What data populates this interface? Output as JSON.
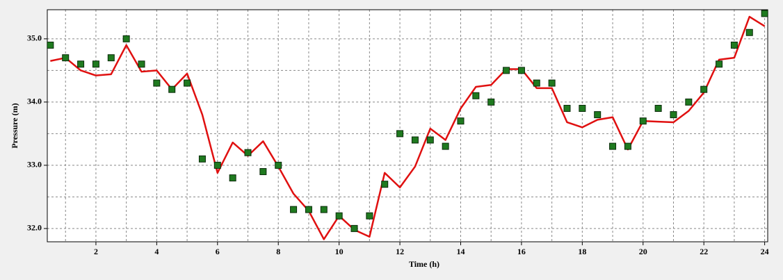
{
  "chart_data": {
    "type": "line",
    "xlabel": "Time (h)",
    "ylabel": "Pressure (m)",
    "x": [
      0.5,
      1,
      1.5,
      2,
      2.5,
      3,
      3.5,
      4,
      4.5,
      5,
      5.5,
      6,
      6.5,
      7,
      7.5,
      8,
      8.5,
      9,
      9.5,
      10,
      10.5,
      11,
      11.5,
      12,
      12.5,
      13,
      13.5,
      14,
      14.5,
      15,
      15.5,
      16,
      16.5,
      17,
      17.5,
      18,
      18.5,
      19,
      19.5,
      20,
      20.5,
      21,
      21.5,
      22,
      22.5,
      23,
      23.5,
      24
    ],
    "series": [
      {
        "type": "line",
        "color": "#e01010",
        "values": [
          34.65,
          34.7,
          34.5,
          34.42,
          34.44,
          34.9,
          34.48,
          34.5,
          34.2,
          34.45,
          33.8,
          32.88,
          33.36,
          33.15,
          33.38,
          32.98,
          32.55,
          32.28,
          31.83,
          32.2,
          31.98,
          31.87,
          32.88,
          32.65,
          32.98,
          33.58,
          33.4,
          33.9,
          34.24,
          34.27,
          34.52,
          34.52,
          34.22,
          34.22,
          33.68,
          33.6,
          33.72,
          33.76,
          33.25,
          33.7,
          33.69,
          33.68,
          33.86,
          34.15,
          34.67,
          34.7,
          35.35,
          35.2
        ]
      },
      {
        "type": "scatter",
        "color": "#1f7a1f",
        "values": [
          34.9,
          34.7,
          34.6,
          34.6,
          34.7,
          35.0,
          34.6,
          34.3,
          34.2,
          34.3,
          33.1,
          33.0,
          32.8,
          33.2,
          32.9,
          33.0,
          32.3,
          32.3,
          32.3,
          32.2,
          32.0,
          32.2,
          32.7,
          33.5,
          33.4,
          33.4,
          33.3,
          33.7,
          34.1,
          34.0,
          34.5,
          34.5,
          34.3,
          34.3,
          33.9,
          33.9,
          33.8,
          33.3,
          33.3,
          33.7,
          33.9,
          33.8,
          34.0,
          34.2,
          34.6,
          34.9,
          35.1,
          35.4
        ]
      }
    ],
    "xlim": [
      0.4,
      24.1
    ],
    "ylim": [
      31.79,
      35.46
    ],
    "xticks": [
      2,
      4,
      6,
      8,
      10,
      12,
      14,
      16,
      18,
      20,
      22,
      24
    ],
    "xminor": [
      1,
      3,
      5,
      7,
      9,
      11,
      13,
      15,
      17,
      19,
      21,
      23
    ],
    "yticks": [
      {
        "value": 32,
        "label": "32.0"
      },
      {
        "value": 33,
        "label": "33.0"
      },
      {
        "value": 34,
        "label": "34.0"
      },
      {
        "value": 35,
        "label": "35.0"
      }
    ],
    "yminor": [
      32.5,
      33.5,
      34.5
    ],
    "grid": true
  }
}
